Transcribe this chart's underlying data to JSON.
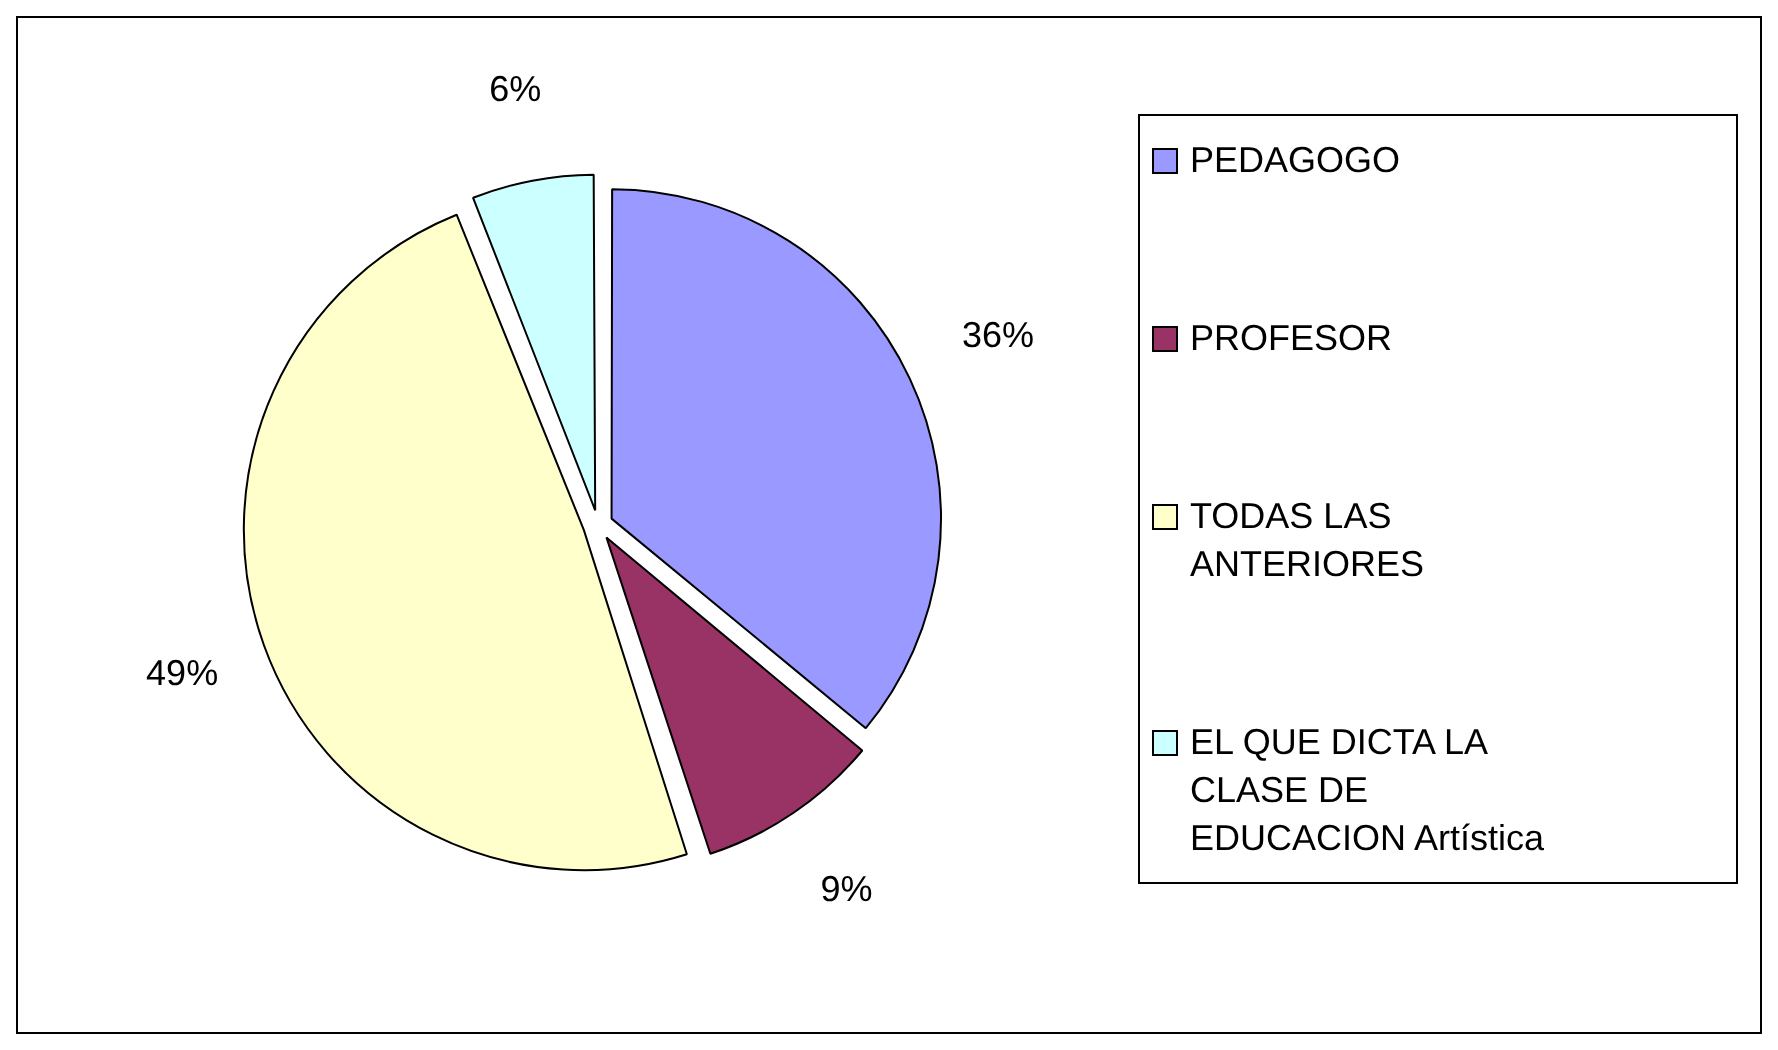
{
  "chart_data": {
    "type": "pie",
    "categories": [
      "PEDAGOGO",
      "PROFESOR",
      "TODAS LAS ANTERIORES",
      "EL QUE DICTA LA CLASE DE EDUCACION Artística"
    ],
    "values": [
      36,
      9,
      49,
      6
    ],
    "colors": [
      "#9999ff",
      "#993366",
      "#ffffcc",
      "#ccffff"
    ],
    "value_labels": [
      "36%",
      "9%",
      "49%",
      "6%"
    ],
    "legend": "right"
  }
}
